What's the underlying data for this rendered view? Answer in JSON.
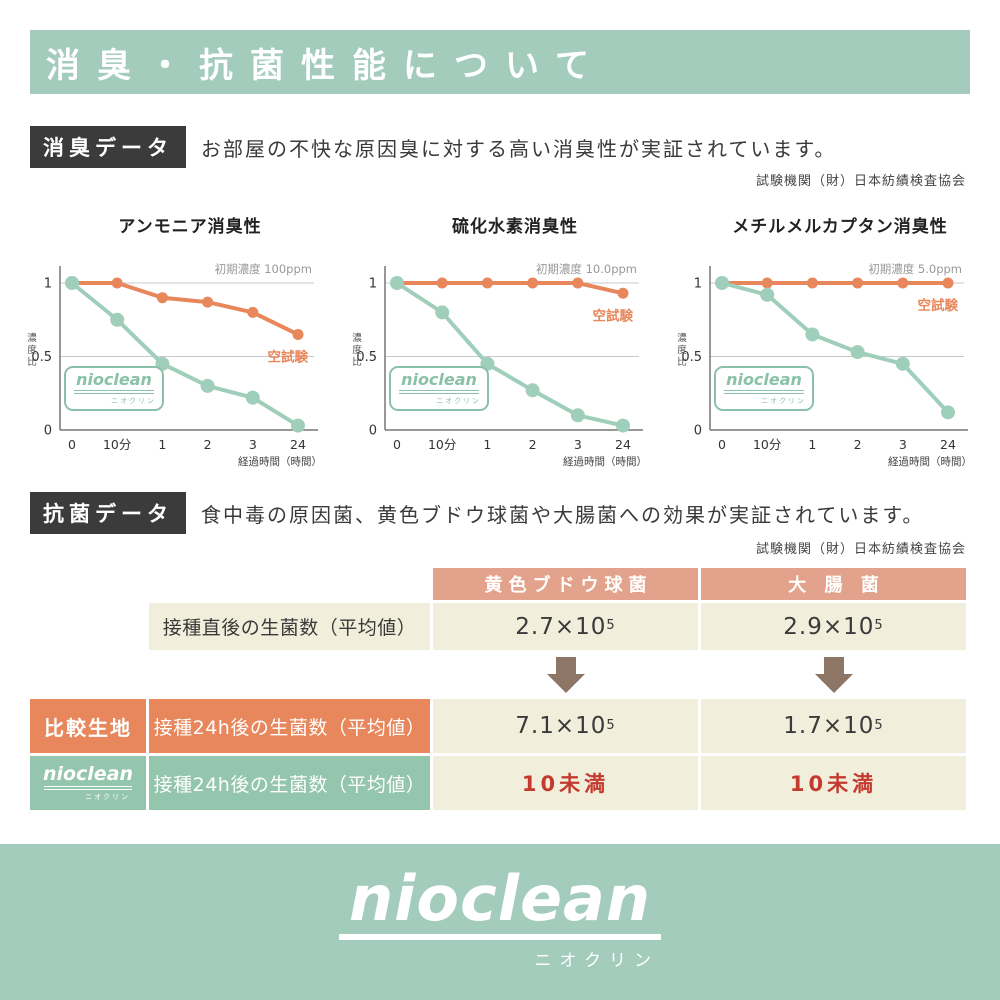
{
  "header": {
    "title": "消臭・抗菌性能について"
  },
  "logo": {
    "word": "nioclean",
    "sub": "ニオクリン"
  },
  "deodorant_section": {
    "badge": "消臭データ",
    "description": "お部屋の不快な原因臭に対する高い消臭性が実証されています。",
    "agency": "試験機関（財）日本紡績検査協会"
  },
  "chart_data": [
    {
      "type": "line",
      "title": "アンモニア消臭性",
      "initial_concentration": "初期濃度 100ppm",
      "categories": [
        "0",
        "10分",
        "1",
        "2",
        "3",
        "24"
      ],
      "xlabel": "経過時間（時間）",
      "ylabel": "濃度比",
      "ylim": [
        0,
        1
      ],
      "yticks": [
        "1",
        "0.5",
        "0"
      ],
      "grid": true,
      "legend_position": "right-inline",
      "series": [
        {
          "name": "空試験",
          "color": "#e8875c",
          "values": [
            1,
            1,
            0.9,
            0.87,
            0.8,
            0.65
          ]
        },
        {
          "name": "nioclean",
          "color": "#9fceba",
          "values": [
            1,
            0.75,
            0.45,
            0.3,
            0.22,
            0.03
          ]
        }
      ]
    },
    {
      "type": "line",
      "title": "硫化水素消臭性",
      "initial_concentration": "初期濃度 10.0ppm",
      "categories": [
        "0",
        "10分",
        "1",
        "2",
        "3",
        "24"
      ],
      "xlabel": "経過時間（時間）",
      "ylabel": "濃度比",
      "ylim": [
        0,
        1
      ],
      "yticks": [
        "1",
        "0.5",
        "0"
      ],
      "grid": true,
      "legend_position": "right-inline",
      "series": [
        {
          "name": "空試験",
          "color": "#e8875c",
          "values": [
            1,
            1,
            1,
            1,
            1,
            0.93
          ]
        },
        {
          "name": "nioclean",
          "color": "#9fceba",
          "values": [
            1,
            0.8,
            0.45,
            0.27,
            0.1,
            0.03
          ]
        }
      ]
    },
    {
      "type": "line",
      "title": "メチルメルカプタン消臭性",
      "initial_concentration": "初期濃度 5.0ppm",
      "categories": [
        "0",
        "10分",
        "1",
        "2",
        "3",
        "24"
      ],
      "xlabel": "経過時間（時間）",
      "ylabel": "濃度比",
      "ylim": [
        0,
        1
      ],
      "yticks": [
        "1",
        "0.5",
        "0"
      ],
      "grid": true,
      "legend_position": "right-inline",
      "series": [
        {
          "name": "空試験",
          "color": "#e8875c",
          "values": [
            1,
            1,
            1,
            1,
            1,
            1
          ]
        },
        {
          "name": "nioclean",
          "color": "#9fceba",
          "values": [
            1,
            0.92,
            0.65,
            0.53,
            0.45,
            0.12
          ]
        }
      ]
    }
  ],
  "antibacterial_section": {
    "badge": "抗菌データ",
    "description": "食中毒の原因菌、黄色ブドウ球菌や大腸菌への効果が実証されています。",
    "agency": "試験機関（財）日本紡績検査協会",
    "table": {
      "columns": [
        "黄色ブドウ球菌",
        "大 腸 菌"
      ],
      "row1_label": "接種直後の生菌数（平均値）",
      "row1_values": [
        {
          "num": "2.7×10",
          "exp": "5"
        },
        {
          "num": "2.9×10",
          "exp": "5"
        }
      ],
      "row2_side": "比較生地",
      "row2_label": "接種24h後の生菌数（平均値）",
      "row2_values": [
        {
          "num": "7.1×10",
          "exp": "5"
        },
        {
          "num": "1.7×10",
          "exp": "5"
        }
      ],
      "row3_side": "nioclean",
      "row3_label": "接種24h後の生菌数（平均値）",
      "row3_values": [
        {
          "num": "10未満",
          "exp": ""
        },
        {
          "num": "10未満",
          "exp": ""
        }
      ]
    }
  },
  "colors": {
    "theme_green": "#a3ccbd",
    "chart_orange": "#e8875c",
    "chart_green": "#9fceba",
    "salmon": "#e2a28b",
    "cream": "#f1eedb",
    "cell_orange": "#e8875c",
    "cell_green": "#94c5ad",
    "arrow_brown": "#8d7665",
    "alert_red": "#c43a2f",
    "badge_black": "#3b3b3b",
    "logo_green": "#8bc0a9"
  }
}
